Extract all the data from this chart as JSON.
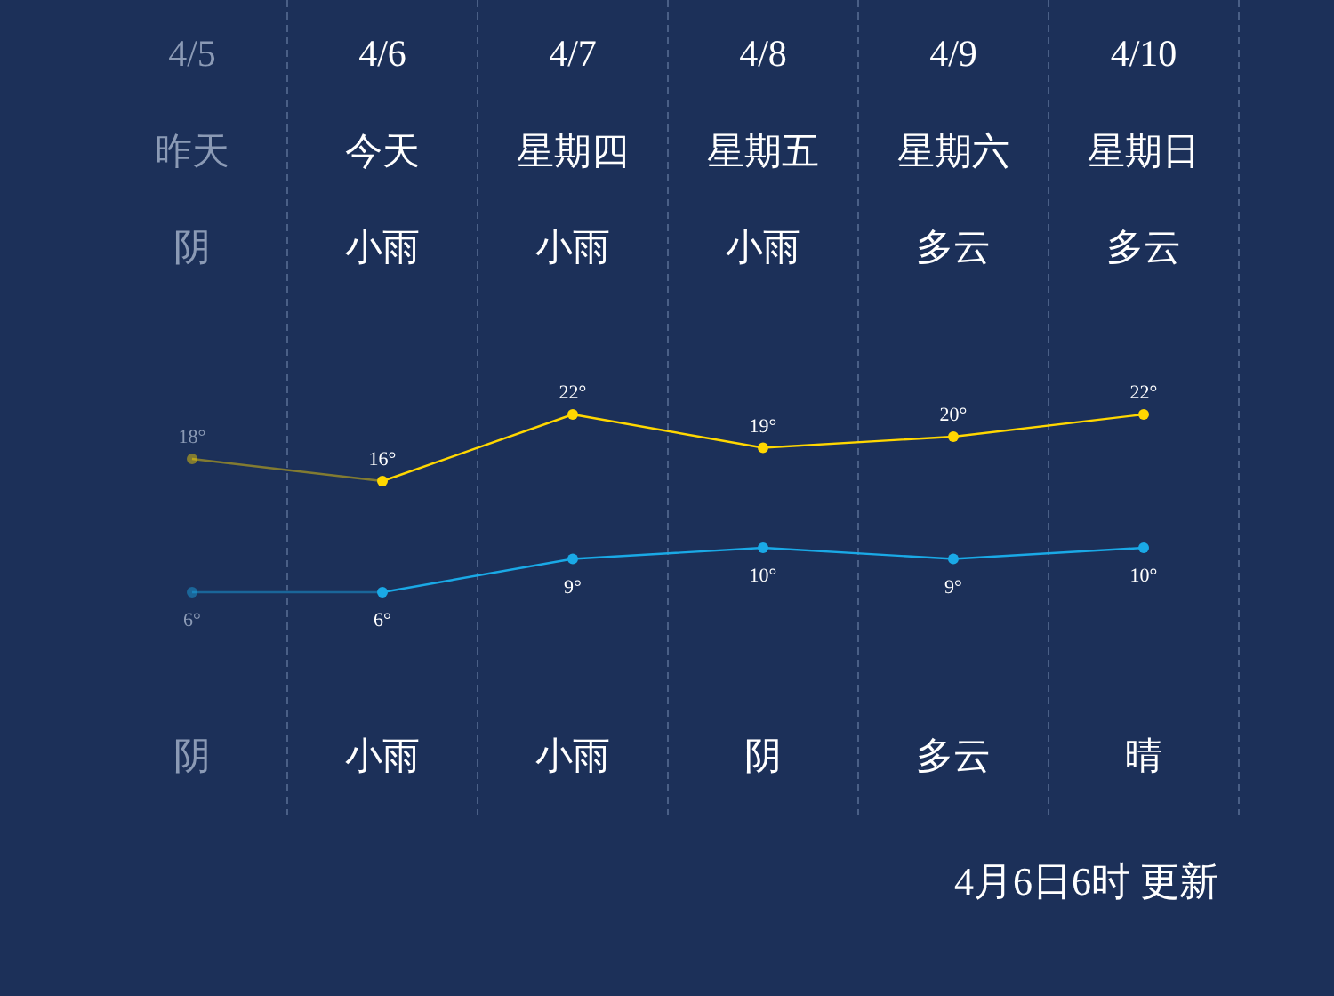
{
  "chart_data": {
    "type": "line",
    "categories": [
      "4/5",
      "4/6",
      "4/7",
      "4/8",
      "4/9",
      "4/10"
    ],
    "series": [
      {
        "color": "#ffd700",
        "values": [
          18,
          16,
          22,
          19,
          20,
          22
        ],
        "value_labels": [
          "18°",
          "16°",
          "22°",
          "19°",
          "20°",
          "22°"
        ]
      },
      {
        "color": "#1aa9e6",
        "values": [
          6,
          6,
          9,
          10,
          9,
          10
        ],
        "value_labels": [
          "6°",
          "6°",
          "9°",
          "10°",
          "9°",
          "10°"
        ]
      }
    ],
    "marker": "circle",
    "grid": "x",
    "annotations": [
      "昨天",
      "今天",
      "星期四",
      "星期五",
      "星期六",
      "星期日",
      "阴",
      "小雨",
      "小雨",
      "小雨",
      "多云",
      "多云",
      "阴",
      "小雨",
      "小雨",
      "阴",
      "多云",
      "晴",
      "4月6日6时 更新"
    ]
  }
}
